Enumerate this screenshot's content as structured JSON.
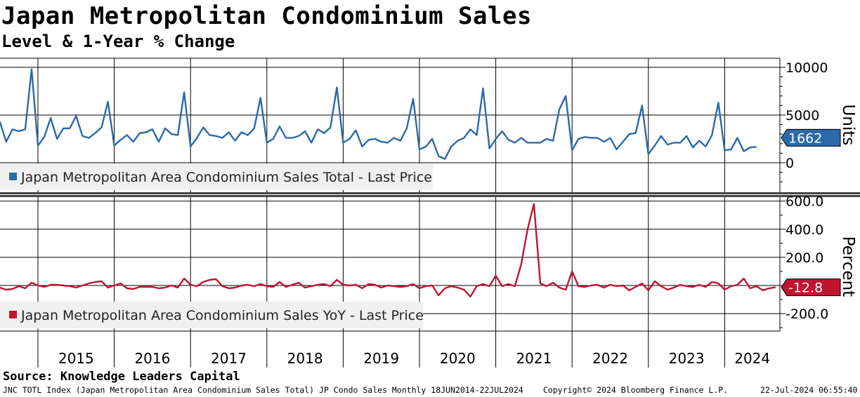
{
  "header": {
    "title": "Japan Metropolitan Condominium Sales",
    "subtitle": "Level & 1-Year % Change"
  },
  "footer": {
    "source": "Source: Knowledge Leaders Capital",
    "ticker_info": "JNC TOTL Index (Japan Metropolitan Area Condominium Sales Total) JP Condo Sales  Monthly 18JUN2014-22JUL2024",
    "copyright": "Copyright© 2024 Bloomberg Finance L.P.",
    "timestamp": "22-Jul-2024 06:55:40"
  },
  "colors": {
    "level_series": "#2a6aa8",
    "yoy_series": "#c0152f",
    "grid": "#000000",
    "legend_bg": "#f0f0f0"
  },
  "chart_data": [
    {
      "type": "line",
      "panel": "top",
      "ylabel": "Units",
      "ylim": [
        -3000,
        11000
      ],
      "yticks": [
        0,
        5000,
        10000
      ],
      "ytick_labels": [
        "0",
        "5000",
        "10000"
      ],
      "x_start": "2014-06",
      "x_step": "monthly",
      "last_value_label": "1662",
      "legend": "Japan Metropolitan Area Condominium Sales Total - Last Price",
      "series": [
        {
          "name": "Japan Metropolitan Area Condominium Sales Total - Last Price",
          "values": [
            3300,
            4300,
            2200,
            3500,
            3300,
            3500,
            9800,
            1800,
            2700,
            4700,
            2500,
            3600,
            3600,
            4900,
            2800,
            2600,
            3100,
            3700,
            6400,
            1800,
            2400,
            2900,
            2200,
            3100,
            3200,
            3500,
            2200,
            3600,
            3000,
            2900,
            7400,
            1700,
            2600,
            3700,
            2900,
            2800,
            2600,
            3200,
            2300,
            3200,
            2900,
            3600,
            6800,
            2100,
            2500,
            3800,
            2600,
            2600,
            2800,
            3300,
            2100,
            3500,
            3100,
            3700,
            7900,
            2100,
            2500,
            3400,
            1700,
            2400,
            2500,
            2200,
            2100,
            2600,
            2300,
            3600,
            6700,
            1400,
            1700,
            2500,
            700,
            400,
            1700,
            2300,
            2600,
            3500,
            2900,
            7800,
            1500,
            2500,
            3300,
            2400,
            2100,
            2600,
            2100,
            2100,
            2100,
            2500,
            2300,
            5600,
            7000,
            1300,
            2500,
            2700,
            2600,
            2600,
            2200,
            2600,
            1400,
            2200,
            3000,
            3100,
            6000,
            900,
            1800,
            2800,
            1900,
            2100,
            2100,
            2800,
            1600,
            2300,
            1700,
            2900,
            6300,
            1300,
            1400,
            2600,
            1200,
            1600,
            1662
          ]
        }
      ],
      "x_axis": {
        "year_labels": [
          "2015",
          "2016",
          "2017",
          "2018",
          "2019",
          "2020",
          "2021",
          "2022",
          "2023",
          "2024"
        ]
      }
    },
    {
      "type": "line",
      "panel": "bottom",
      "ylabel": "Percent",
      "ylim": [
        -330,
        620
      ],
      "yticks": [
        -200,
        200,
        400,
        600
      ],
      "ytick_labels": [
        "-200.0",
        "200.0",
        "400.0",
        "600.0"
      ],
      "x_start": "2014-06",
      "x_step": "monthly",
      "last_value_label": "-12.8",
      "legend": "Japan Metropolitan Area Condominium Sales YoY - Last Price",
      "series": [
        {
          "name": "Japan Metropolitan Area Condominium Sales YoY - Last Price",
          "values": [
            -20,
            -15,
            -30,
            -25,
            -5,
            -20,
            20,
            0,
            -10,
            5,
            5,
            0,
            -5,
            -15,
            0,
            15,
            25,
            30,
            -15,
            0,
            15,
            -20,
            -25,
            -10,
            -10,
            -10,
            -20,
            -15,
            0,
            -15,
            50,
            5,
            -5,
            25,
            40,
            45,
            -5,
            -20,
            -15,
            0,
            5,
            -5,
            10,
            -5,
            -10,
            25,
            -10,
            5,
            20,
            -15,
            -5,
            5,
            10,
            -5,
            40,
            5,
            0,
            5,
            -20,
            10,
            5,
            -15,
            0,
            -5,
            -10,
            -5,
            10,
            -20,
            -5,
            0,
            -70,
            -20,
            -5,
            -15,
            -30,
            -80,
            -5,
            10,
            -5,
            70,
            -5,
            10,
            -5,
            150,
            400,
            580,
            15,
            -5,
            20,
            -15,
            -30,
            100,
            -5,
            -10,
            0,
            5,
            -15,
            5,
            -5,
            0,
            -35,
            -10,
            15,
            -35,
            30,
            -5,
            -30,
            -15,
            5,
            -5,
            -10,
            5,
            -10,
            25,
            15,
            -30,
            -5,
            5,
            50,
            -20,
            -5,
            -35,
            -20,
            -12.8
          ]
        }
      ],
      "x_axis": {
        "year_labels": [
          "2015",
          "2016",
          "2017",
          "2018",
          "2019",
          "2020",
          "2021",
          "2022",
          "2023",
          "2024"
        ]
      }
    }
  ]
}
